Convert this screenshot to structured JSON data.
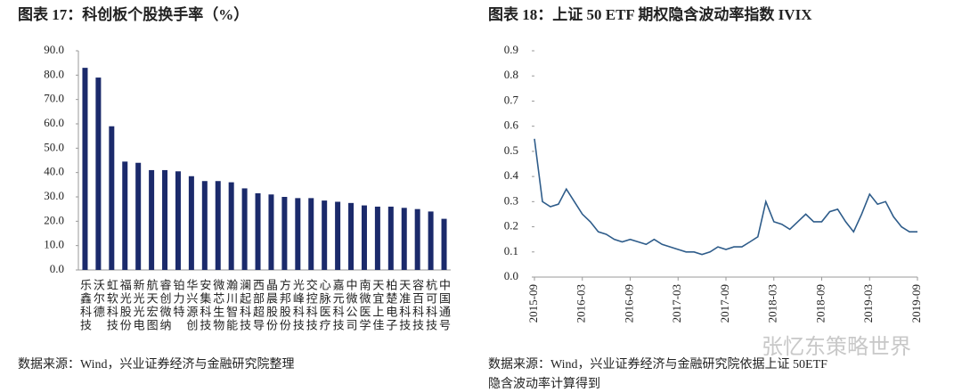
{
  "chart_data": [
    {
      "type": "bar",
      "title": "图表 17：科创板个股换手率（%）",
      "categories": [
        "乐鑫科技",
        "沃尔德",
        "虹软科技",
        "福光股份",
        "新光光电",
        "航天宏图",
        "睿创微纳",
        "铂力特",
        "华兴源创",
        "安集科技",
        "微芯生物",
        "瀚川智能",
        "澜起科技",
        "西部超导",
        "晶晨股份",
        "方邦股份",
        "光峰科技",
        "交控科技",
        "心脉医疗",
        "嘉元科技",
        "中微公司",
        "南微医学",
        "天宜上佳",
        "柏楚电子",
        "天准科技",
        "容百科技",
        "杭可科技",
        "中国通号"
      ],
      "values": [
        83,
        79,
        59,
        44.5,
        44,
        41,
        41,
        40.5,
        38.5,
        36.5,
        36.5,
        36,
        33.5,
        31.5,
        31,
        30,
        29.5,
        29.5,
        28.5,
        28,
        27.5,
        26.5,
        26,
        26,
        25.5,
        25,
        24,
        21
      ],
      "color": "#1b2a6b",
      "ylim": [
        0,
        90
      ],
      "yticks": [
        {
          "value": 0,
          "label": "0.0"
        },
        {
          "value": 10,
          "label": "10.0"
        },
        {
          "value": 20,
          "label": "20.0"
        },
        {
          "value": 30,
          "label": "30.0"
        },
        {
          "value": 40,
          "label": "40.0"
        },
        {
          "value": 50,
          "label": "50.0"
        },
        {
          "value": 60,
          "label": "60.0"
        },
        {
          "value": 70,
          "label": "70.0"
        },
        {
          "value": 80,
          "label": "80.0"
        },
        {
          "value": 90,
          "label": "90.0"
        }
      ],
      "source": "数据来源：Wind，兴业证券经济与金融研究院整理"
    },
    {
      "type": "line",
      "title": "图表 18：上证 50 ETF 期权隐含波动率指数 IVIX",
      "x": [
        "2015-09",
        "2015-10",
        "2015-11",
        "2015-12",
        "2016-01",
        "2016-02",
        "2016-03",
        "2016-04",
        "2016-05",
        "2016-06",
        "2016-07",
        "2016-08",
        "2016-09",
        "2016-10",
        "2016-11",
        "2016-12",
        "2017-01",
        "2017-02",
        "2017-03",
        "2017-04",
        "2017-05",
        "2017-06",
        "2017-07",
        "2017-08",
        "2017-09",
        "2017-10",
        "2017-11",
        "2017-12",
        "2018-01",
        "2018-02",
        "2018-03",
        "2018-04",
        "2018-05",
        "2018-06",
        "2018-07",
        "2018-08",
        "2018-09",
        "2018-10",
        "2018-11",
        "2018-12",
        "2019-01",
        "2019-02",
        "2019-03",
        "2019-04",
        "2019-05",
        "2019-06",
        "2019-07",
        "2019-08",
        "2019-09"
      ],
      "values": [
        0.55,
        0.3,
        0.28,
        0.29,
        0.35,
        0.3,
        0.25,
        0.22,
        0.18,
        0.17,
        0.15,
        0.14,
        0.15,
        0.14,
        0.13,
        0.15,
        0.13,
        0.12,
        0.11,
        0.1,
        0.1,
        0.09,
        0.1,
        0.12,
        0.11,
        0.12,
        0.12,
        0.14,
        0.16,
        0.3,
        0.22,
        0.21,
        0.19,
        0.22,
        0.25,
        0.22,
        0.22,
        0.26,
        0.27,
        0.22,
        0.18,
        0.25,
        0.33,
        0.29,
        0.3,
        0.24,
        0.2,
        0.18,
        0.18
      ],
      "color": "#2e5c8a",
      "xticks": [
        "2015-09",
        "2016-03",
        "2016-09",
        "2017-03",
        "2017-09",
        "2018-03",
        "2018-09",
        "2019-03",
        "2019-09"
      ],
      "ylim": [
        0,
        0.9
      ],
      "yticks": [
        {
          "value": 0,
          "label": "0.0"
        },
        0.1,
        0.2,
        0.3,
        0.4,
        0.5,
        0.6,
        0.7,
        0.8,
        0.9
      ],
      "source": [
        "数据来源：Wind，兴业证券经济与金融研究院依据上证 50ETF",
        "隐含波动率计算得到"
      ]
    }
  ],
  "watermark": "张忆东策略世界"
}
